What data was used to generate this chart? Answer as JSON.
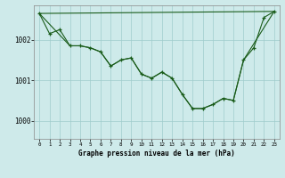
{
  "title": "Graphe pression niveau de la mer (hPa)",
  "bg_color": "#ceeaea",
  "line_color": "#1a5c1a",
  "grid_color": "#a0cccc",
  "x_ticks": [
    0,
    1,
    2,
    3,
    4,
    5,
    6,
    7,
    8,
    9,
    10,
    11,
    12,
    13,
    14,
    15,
    16,
    17,
    18,
    19,
    20,
    21,
    22,
    23
  ],
  "y_ticks": [
    1000,
    1001,
    1002
  ],
  "ylim": [
    999.55,
    1002.85
  ],
  "xlim": [
    -0.5,
    23.5
  ],
  "series1_x": [
    0,
    1,
    2,
    3,
    4,
    5,
    6,
    7,
    8,
    9,
    10,
    11,
    12,
    13,
    14,
    15,
    16,
    17,
    18,
    19,
    20,
    21,
    22,
    23
  ],
  "series1_y": [
    1002.65,
    1002.15,
    1002.25,
    1001.85,
    1001.85,
    1001.8,
    1001.7,
    1001.35,
    1001.5,
    1001.55,
    1001.15,
    1001.05,
    1001.2,
    1001.05,
    1000.65,
    1000.3,
    1000.3,
    1000.4,
    1000.55,
    1000.5,
    1001.5,
    1001.8,
    1002.55,
    1002.7
  ],
  "series2_x": [
    0,
    23
  ],
  "series2_y": [
    1002.65,
    1002.7
  ],
  "series3_x": [
    0,
    3,
    4,
    5,
    6,
    7,
    8,
    9,
    10,
    11,
    12,
    13,
    14,
    15,
    16,
    17,
    18,
    19,
    20,
    23
  ],
  "series3_y": [
    1002.65,
    1001.85,
    1001.85,
    1001.8,
    1001.7,
    1001.35,
    1001.5,
    1001.55,
    1001.15,
    1001.05,
    1001.2,
    1001.05,
    1000.65,
    1000.3,
    1000.3,
    1000.4,
    1000.55,
    1000.5,
    1001.5,
    1002.7
  ]
}
